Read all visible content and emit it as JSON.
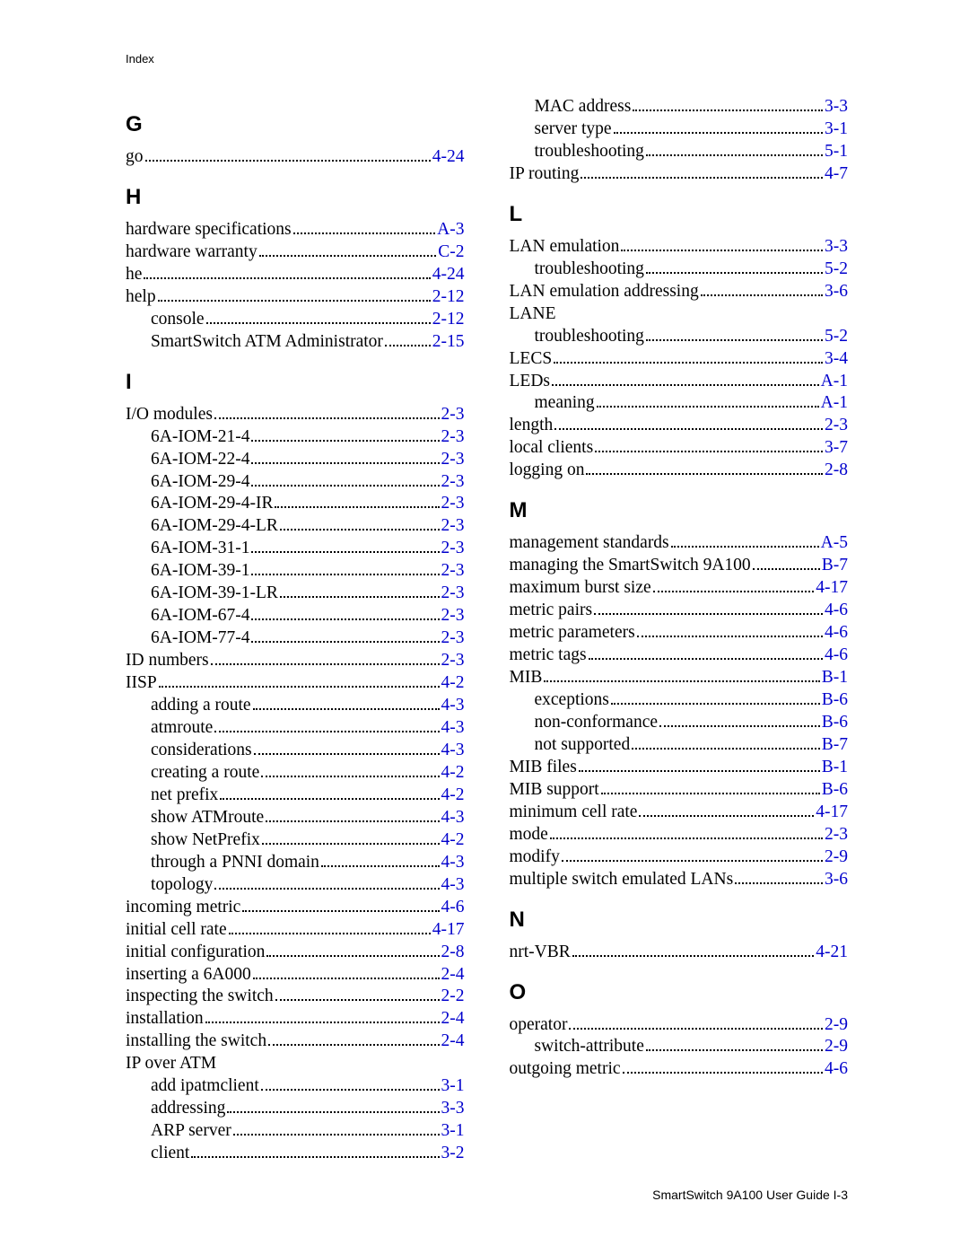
{
  "running_head": "Index",
  "footer": "SmartSwitch 9A100 User Guide   I-3",
  "link_color": "#0000cc",
  "left": [
    {
      "type": "letter",
      "text": "G"
    },
    {
      "type": "entry",
      "level": 0,
      "label": "go",
      "page": "4-24"
    },
    {
      "type": "letter",
      "text": "H"
    },
    {
      "type": "entry",
      "level": 0,
      "label": "hardware specifications",
      "page": "A-3"
    },
    {
      "type": "entry",
      "level": 0,
      "label": "hardware warranty",
      "page": "C-2"
    },
    {
      "type": "entry",
      "level": 0,
      "label": "he",
      "page": "4-24"
    },
    {
      "type": "entry",
      "level": 0,
      "label": "help",
      "page": "2-12"
    },
    {
      "type": "entry",
      "level": 1,
      "label": "console",
      "page": "2-12"
    },
    {
      "type": "entry",
      "level": 1,
      "label": "SmartSwitch ATM Administrator",
      "page": "2-15"
    },
    {
      "type": "letter",
      "text": "I"
    },
    {
      "type": "entry",
      "level": 0,
      "label": "I/O modules",
      "page": "2-3"
    },
    {
      "type": "entry",
      "level": 1,
      "label": "6A-IOM-21-4",
      "page": "2-3"
    },
    {
      "type": "entry",
      "level": 1,
      "label": "6A-IOM-22-4",
      "page": "2-3"
    },
    {
      "type": "entry",
      "level": 1,
      "label": "6A-IOM-29-4",
      "page": "2-3"
    },
    {
      "type": "entry",
      "level": 1,
      "label": "6A-IOM-29-4-IR",
      "page": "2-3"
    },
    {
      "type": "entry",
      "level": 1,
      "label": "6A-IOM-29-4-LR",
      "page": "2-3"
    },
    {
      "type": "entry",
      "level": 1,
      "label": "6A-IOM-31-1",
      "page": "2-3"
    },
    {
      "type": "entry",
      "level": 1,
      "label": "6A-IOM-39-1",
      "page": "2-3"
    },
    {
      "type": "entry",
      "level": 1,
      "label": "6A-IOM-39-1-LR",
      "page": "2-3"
    },
    {
      "type": "entry",
      "level": 1,
      "label": "6A-IOM-67-4",
      "page": "2-3"
    },
    {
      "type": "entry",
      "level": 1,
      "label": "6A-IOM-77-4",
      "page": "2-3"
    },
    {
      "type": "entry",
      "level": 0,
      "label": "ID numbers",
      "page": "2-3"
    },
    {
      "type": "entry",
      "level": 0,
      "label": "IISP",
      "page": "4-2"
    },
    {
      "type": "entry",
      "level": 1,
      "label": "adding a route",
      "page": "4-3"
    },
    {
      "type": "entry",
      "level": 1,
      "label": "atmroute",
      "page": "4-3"
    },
    {
      "type": "entry",
      "level": 1,
      "label": "considerations",
      "page": "4-3"
    },
    {
      "type": "entry",
      "level": 1,
      "label": "creating a route",
      "page": "4-2"
    },
    {
      "type": "entry",
      "level": 1,
      "label": "net prefix",
      "page": "4-2"
    },
    {
      "type": "entry",
      "level": 1,
      "label": "show ATMroute",
      "page": "4-3"
    },
    {
      "type": "entry",
      "level": 1,
      "label": "show NetPrefix",
      "page": "4-2"
    },
    {
      "type": "entry",
      "level": 1,
      "label": "through a PNNI domain",
      "page": "4-3"
    },
    {
      "type": "entry",
      "level": 1,
      "label": "topology",
      "page": "4-3"
    },
    {
      "type": "entry",
      "level": 0,
      "label": "incoming metric",
      "page": "4-6"
    },
    {
      "type": "entry",
      "level": 0,
      "label": "initial cell rate",
      "page": "4-17"
    },
    {
      "type": "entry",
      "level": 0,
      "label": "initial configuration",
      "page": "2-8"
    },
    {
      "type": "entry",
      "level": 0,
      "label": "inserting a 6A000",
      "page": "2-4"
    },
    {
      "type": "entry",
      "level": 0,
      "label": "inspecting the switch",
      "page": "2-2"
    },
    {
      "type": "entry",
      "level": 0,
      "label": "installation",
      "page": "2-4"
    },
    {
      "type": "entry",
      "level": 0,
      "label": "installing the switch",
      "page": "2-4"
    },
    {
      "type": "entry",
      "level": 0,
      "label": "IP over ATM",
      "nopage": true
    },
    {
      "type": "entry",
      "level": 1,
      "label": "add ipatmclient",
      "page": "3-1"
    },
    {
      "type": "entry",
      "level": 1,
      "label": "addressing",
      "page": "3-3"
    },
    {
      "type": "entry",
      "level": 1,
      "label": "ARP server",
      "page": "3-1"
    },
    {
      "type": "entry",
      "level": 1,
      "label": "client",
      "page": "3-2"
    }
  ],
  "right": [
    {
      "type": "entry",
      "level": 1,
      "label": "MAC address",
      "page": "3-3"
    },
    {
      "type": "entry",
      "level": 1,
      "label": "server type",
      "page": "3-1"
    },
    {
      "type": "entry",
      "level": 1,
      "label": "troubleshooting",
      "page": "5-1"
    },
    {
      "type": "entry",
      "level": 0,
      "label": "IP routing",
      "page": "4-7"
    },
    {
      "type": "letter",
      "text": "L"
    },
    {
      "type": "entry",
      "level": 0,
      "label": "LAN emulation",
      "page": "3-3"
    },
    {
      "type": "entry",
      "level": 1,
      "label": "troubleshooting",
      "page": "5-2"
    },
    {
      "type": "entry",
      "level": 0,
      "label": "LAN emulation addressing",
      "page": "3-6"
    },
    {
      "type": "entry",
      "level": 0,
      "label": "LANE",
      "nopage": true
    },
    {
      "type": "entry",
      "level": 1,
      "label": "troubleshooting",
      "page": "5-2"
    },
    {
      "type": "entry",
      "level": 0,
      "label": "LECS",
      "page": "3-4"
    },
    {
      "type": "entry",
      "level": 0,
      "label": "LEDs",
      "page": "A-1"
    },
    {
      "type": "entry",
      "level": 1,
      "label": "meaning",
      "page": "A-1"
    },
    {
      "type": "entry",
      "level": 0,
      "label": "length",
      "page": "2-3"
    },
    {
      "type": "entry",
      "level": 0,
      "label": "local clients",
      "page": "3-7"
    },
    {
      "type": "entry",
      "level": 0,
      "label": "logging on",
      "page": "2-8"
    },
    {
      "type": "letter",
      "text": "M"
    },
    {
      "type": "entry",
      "level": 0,
      "label": "management standards",
      "page": "A-5"
    },
    {
      "type": "entry",
      "level": 0,
      "label": "managing the SmartSwitch 9A100",
      "page": "B-7"
    },
    {
      "type": "entry",
      "level": 0,
      "label": "maximum burst size",
      "page": "4-17"
    },
    {
      "type": "entry",
      "level": 0,
      "label": "metric pairs",
      "page": "4-6"
    },
    {
      "type": "entry",
      "level": 0,
      "label": "metric parameters",
      "page": "4-6"
    },
    {
      "type": "entry",
      "level": 0,
      "label": "metric tags",
      "page": "4-6"
    },
    {
      "type": "entry",
      "level": 0,
      "label": "MIB",
      "page": "B-1"
    },
    {
      "type": "entry",
      "level": 1,
      "label": "exceptions",
      "page": "B-6"
    },
    {
      "type": "entry",
      "level": 1,
      "label": "non-conformance",
      "page": "B-6"
    },
    {
      "type": "entry",
      "level": 1,
      "label": "not supported",
      "page": "B-7"
    },
    {
      "type": "entry",
      "level": 0,
      "label": "MIB files",
      "page": "B-1"
    },
    {
      "type": "entry",
      "level": 0,
      "label": "MIB support",
      "page": "B-6"
    },
    {
      "type": "entry",
      "level": 0,
      "label": "minimum cell rate",
      "page": "4-17"
    },
    {
      "type": "entry",
      "level": 0,
      "label": "mode",
      "page": "2-3"
    },
    {
      "type": "entry",
      "level": 0,
      "label": "modify",
      "page": "2-9"
    },
    {
      "type": "entry",
      "level": 0,
      "label": "multiple switch emulated LANs",
      "page": "3-6"
    },
    {
      "type": "letter",
      "text": "N"
    },
    {
      "type": "entry",
      "level": 0,
      "label": "nrt-VBR",
      "page": "4-21"
    },
    {
      "type": "letter",
      "text": "O"
    },
    {
      "type": "entry",
      "level": 0,
      "label": "operator",
      "page": "2-9"
    },
    {
      "type": "entry",
      "level": 1,
      "label": "switch-attribute",
      "page": "2-9"
    },
    {
      "type": "entry",
      "level": 0,
      "label": "outgoing metric",
      "page": "4-6"
    }
  ]
}
